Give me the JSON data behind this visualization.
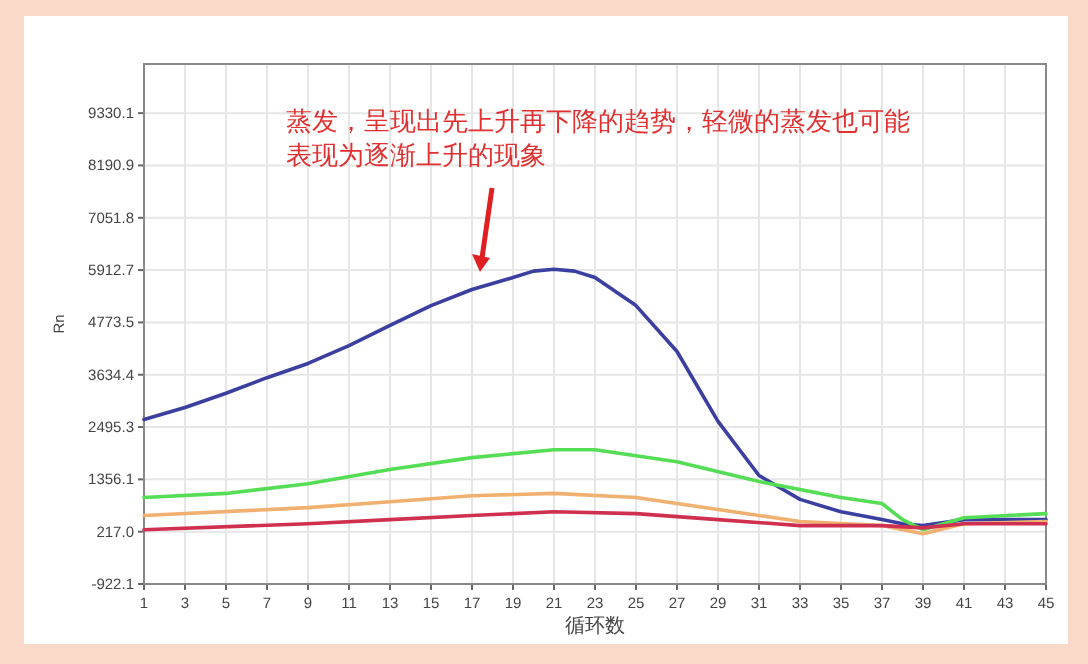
{
  "chart_data": {
    "type": "line",
    "xlabel": "循环数",
    "ylabel": "Rn",
    "annotations": [
      "蒸发，呈现出先上升再下降的趋势，轻微的蒸发也可能表现为逐渐上升的现象"
    ],
    "xlim": [
      1,
      45
    ],
    "xticks": [
      1,
      3,
      5,
      7,
      9,
      11,
      13,
      15,
      17,
      19,
      21,
      23,
      25,
      27,
      29,
      31,
      33,
      35,
      37,
      39,
      41,
      43,
      45
    ],
    "ylim": [
      -922.1,
      10400
    ],
    "yticks": [
      -922.1,
      {
        "value": 217,
        "label": "217.0"
      },
      1356.1,
      2495.3,
      3634.4,
      4773.5,
      5912.7,
      7051.8,
      8190.9,
      9330.1
    ],
    "grid": true,
    "series": [
      {
        "color": "#3a3fa0",
        "x": [
          1,
          3,
          5,
          7,
          9,
          11,
          13,
          15,
          17,
          19,
          20,
          21,
          22,
          23,
          25,
          27,
          29,
          31,
          33,
          35,
          37,
          38,
          39,
          41,
          43,
          45
        ],
        "values": [
          2660,
          2920,
          3230,
          3570,
          3880,
          4270,
          4710,
          5140,
          5490,
          5750,
          5890,
          5930,
          5890,
          5750,
          5140,
          4140,
          2620,
          1440,
          920,
          650,
          480,
          390,
          350,
          480,
          480,
          480
        ]
      },
      {
        "color": "#55dd55",
        "x": [
          1,
          5,
          9,
          13,
          17,
          21,
          23,
          27,
          31,
          35,
          37,
          38,
          39,
          41,
          45
        ],
        "values": [
          960,
          1050,
          1260,
          1570,
          1830,
          2000,
          2000,
          1740,
          1310,
          960,
          830,
          480,
          260,
          520,
          610
        ]
      },
      {
        "color": "#f0b070",
        "x": [
          1,
          9,
          13,
          17,
          21,
          25,
          29,
          33,
          37,
          39,
          41,
          45
        ],
        "values": [
          570,
          740,
          870,
          1000,
          1050,
          960,
          700,
          440,
          350,
          170,
          390,
          440
        ]
      },
      {
        "color": "#d03050",
        "x": [
          1,
          9,
          13,
          17,
          21,
          25,
          29,
          33,
          37,
          39,
          41,
          45
        ],
        "values": [
          260,
          390,
          480,
          570,
          650,
          610,
          480,
          350,
          350,
          300,
          390,
          390
        ]
      }
    ]
  }
}
